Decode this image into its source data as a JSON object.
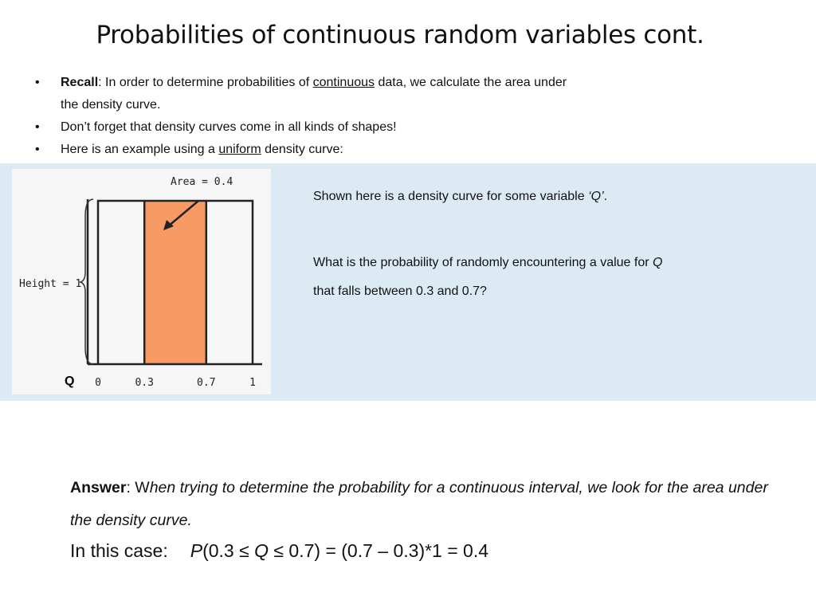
{
  "title": "Probabilities of continuous random variables cont.",
  "bullets": [
    {
      "marker": "•",
      "bold": "Recall",
      "pre": ": In order to determine probabilities of ",
      "underline": "continuous",
      "post": " data, we calculate the area under",
      "cont": "the density curve."
    },
    {
      "marker": "•",
      "text": "Don’t forget that density curves come in all kinds of shapes!"
    },
    {
      "marker": "•",
      "pre": "Here is an example using a ",
      "underline": "uniform",
      "post": " density curve:"
    }
  ],
  "figure": {
    "area_label": "Area = 0.4",
    "height_label": "Height = 1",
    "axis_var": "Q",
    "ticks": [
      "0",
      "0.3",
      "0.7",
      "1"
    ],
    "interval": [
      0.3,
      0.7
    ],
    "density": 1,
    "area": 0.4,
    "fill_color": "#f79a63",
    "outline_color": "#222222"
  },
  "side": {
    "shown_pre": "Shown here is a density curve for some variable ",
    "shown_var": "‘Q’",
    "shown_post": ".",
    "question_pre": "What is the probability of randomly encountering a value for ",
    "question_var": "Q",
    "question_post": "that falls between 0.3 and 0.7?"
  },
  "answer": {
    "label": "Answer",
    "sep": ": W",
    "text": "hen trying to determine the probability for a continuous interval, we look for the area under the density curve.",
    "case_label": "In this case:",
    "eq_p": "P",
    "eq_open": "(0.3 ≤ ",
    "eq_q": "Q",
    "eq_rest": " ≤ 0.7) = (0.7 – 0.3)*1 = 0.4"
  }
}
